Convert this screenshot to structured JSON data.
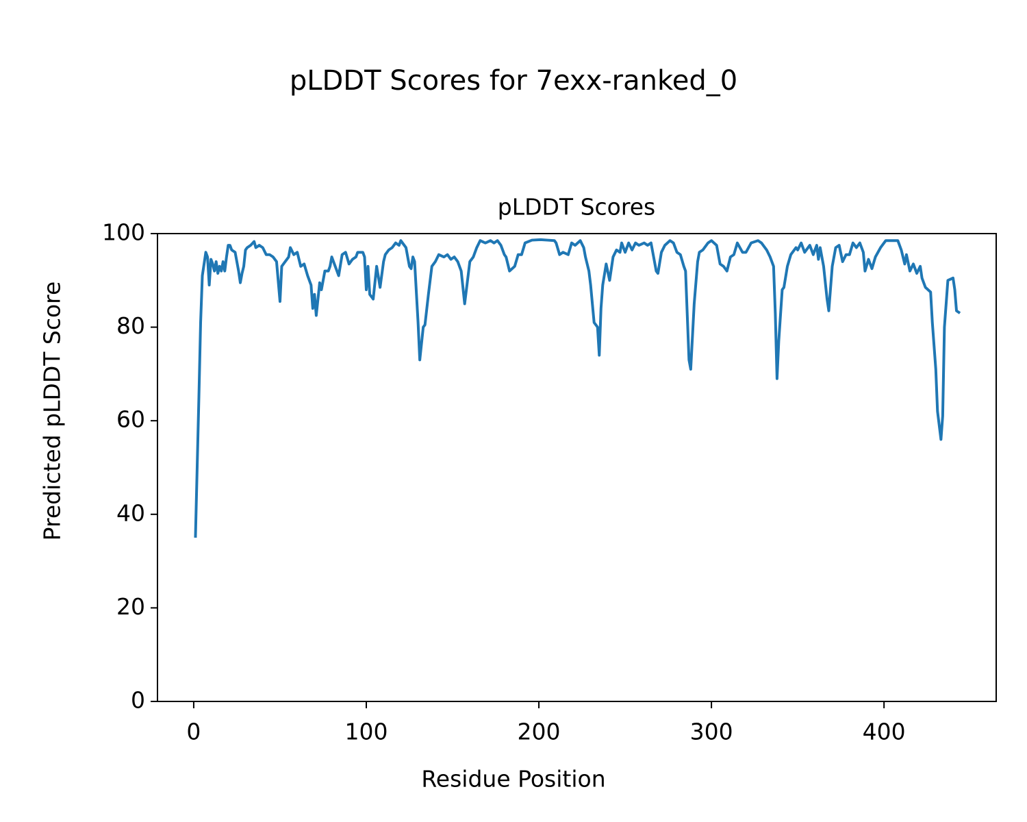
{
  "chart_data": {
    "type": "line",
    "title": "pLDDT Scores for 7exx-ranked_0",
    "subtitle": "pLDDT Scores",
    "x_label": "Residue Position",
    "y_label": "Predicted pLDDT Score",
    "color": "#1f77b4",
    "x": [
      1,
      2,
      3,
      4,
      5,
      6,
      7,
      8,
      9,
      10,
      11,
      12,
      13,
      14,
      15,
      16,
      17,
      18,
      19,
      20,
      21,
      22,
      24,
      26,
      27,
      28,
      29,
      30,
      31,
      33,
      35,
      36,
      38,
      40,
      42,
      44,
      46,
      48,
      50,
      51,
      53,
      55,
      56,
      58,
      60,
      62,
      64,
      66,
      68,
      69,
      70,
      71,
      73,
      74,
      76,
      78,
      79,
      80,
      82,
      84,
      86,
      88,
      90,
      92,
      94,
      95,
      98,
      99,
      100,
      101,
      102,
      104,
      106,
      108,
      110,
      111,
      113,
      115,
      117,
      119,
      120,
      123,
      125,
      126,
      127,
      128,
      130,
      131,
      133,
      134,
      136,
      138,
      140,
      142,
      145,
      147,
      149,
      151,
      153,
      155,
      157,
      158,
      160,
      162,
      164,
      166,
      169,
      172,
      174,
      176,
      178,
      180,
      181,
      183,
      186,
      188,
      190,
      192,
      196,
      201,
      205,
      209,
      210,
      212,
      214,
      217,
      219,
      221,
      224,
      226,
      227,
      229,
      230,
      232,
      234,
      235,
      236,
      237,
      239,
      241,
      243,
      245,
      247,
      248,
      250,
      252,
      254,
      256,
      258,
      261,
      263,
      265,
      266,
      268,
      269,
      271,
      273,
      276,
      278,
      280,
      282,
      284,
      285,
      287,
      288,
      290,
      292,
      293,
      295,
      298,
      300,
      303,
      305,
      307,
      309,
      311,
      313,
      315,
      318,
      320,
      323,
      327,
      329,
      332,
      334,
      336,
      337,
      338,
      339,
      341,
      342,
      344,
      346,
      349,
      350,
      352,
      354,
      357,
      359,
      361,
      362,
      363,
      365,
      367,
      368,
      370,
      372,
      374,
      376,
      378,
      380,
      382,
      384,
      386,
      388,
      389,
      391,
      393,
      395,
      398,
      401,
      404,
      408,
      410,
      412,
      413,
      415,
      417,
      419,
      421,
      422,
      424,
      427,
      428,
      430,
      431,
      433,
      434,
      435,
      437,
      440,
      441,
      442,
      444
    ],
    "values": [
      35,
      50,
      65,
      81,
      91,
      93.5,
      96,
      95,
      89,
      94.5,
      93.5,
      92,
      94,
      91.5,
      93,
      92,
      94,
      92,
      95,
      97.5,
      97.5,
      96.5,
      96,
      92,
      89.5,
      91.5,
      93,
      96.5,
      97,
      97.5,
      98.3,
      97,
      97.5,
      97,
      95.5,
      95.5,
      95,
      94,
      85.5,
      93,
      94,
      95,
      97,
      95.5,
      96,
      93,
      93.5,
      91,
      89,
      84,
      87,
      82.5,
      89.5,
      88,
      92,
      92,
      93,
      95,
      93,
      91,
      95.5,
      96,
      93.5,
      94.5,
      95,
      96,
      96,
      95,
      88,
      93,
      87,
      86,
      93,
      88.5,
      94,
      95.5,
      96.5,
      97,
      98,
      97.5,
      98.5,
      97,
      93,
      92.5,
      95,
      94,
      81,
      73,
      80,
      80.5,
      87,
      93,
      94,
      95.5,
      95,
      95.5,
      94.5,
      95,
      94,
      92,
      85,
      88,
      94,
      95,
      97,
      98.5,
      98,
      98.5,
      98,
      98.5,
      97.5,
      95.5,
      95,
      92,
      93,
      95.5,
      95.5,
      98,
      98.6,
      98.7,
      98.6,
      98.5,
      98,
      95.5,
      96,
      95.5,
      98,
      97.5,
      98.5,
      97,
      95,
      92,
      89,
      81,
      80,
      74,
      84,
      89,
      93.5,
      90,
      95,
      96.5,
      96,
      98,
      96,
      98,
      96.5,
      98,
      97.5,
      98,
      97.5,
      98,
      96,
      92,
      91.5,
      96,
      97.5,
      98.5,
      98,
      96,
      95.5,
      93,
      92,
      73,
      71,
      85,
      94,
      96,
      96.5,
      98,
      98.5,
      97.5,
      93.5,
      93,
      92,
      95,
      95.5,
      98,
      96,
      96,
      98,
      98.5,
      98,
      96.5,
      95,
      93,
      83,
      69,
      77,
      88,
      88.5,
      93,
      95.5,
      97,
      96.5,
      98,
      96,
      97.5,
      95.5,
      97.5,
      94.5,
      97,
      93,
      86,
      83.5,
      93,
      97,
      97.5,
      94,
      95.5,
      95.5,
      98,
      97,
      98,
      96,
      92,
      94.5,
      92.5,
      95,
      97,
      98.5,
      98.5,
      98.5,
      96.5,
      93.5,
      95.5,
      92,
      93.5,
      91.5,
      93,
      90.5,
      88.5,
      87.5,
      81,
      71,
      62,
      56,
      61,
      80,
      90,
      90.5,
      88,
      83.5,
      83
    ],
    "xlim": [
      -21,
      465
    ],
    "xticks": [
      0,
      100,
      200,
      300,
      400
    ],
    "ylim": [
      0,
      100
    ],
    "yticks": [
      0,
      20,
      40,
      60,
      80,
      100
    ],
    "grid": false
  }
}
